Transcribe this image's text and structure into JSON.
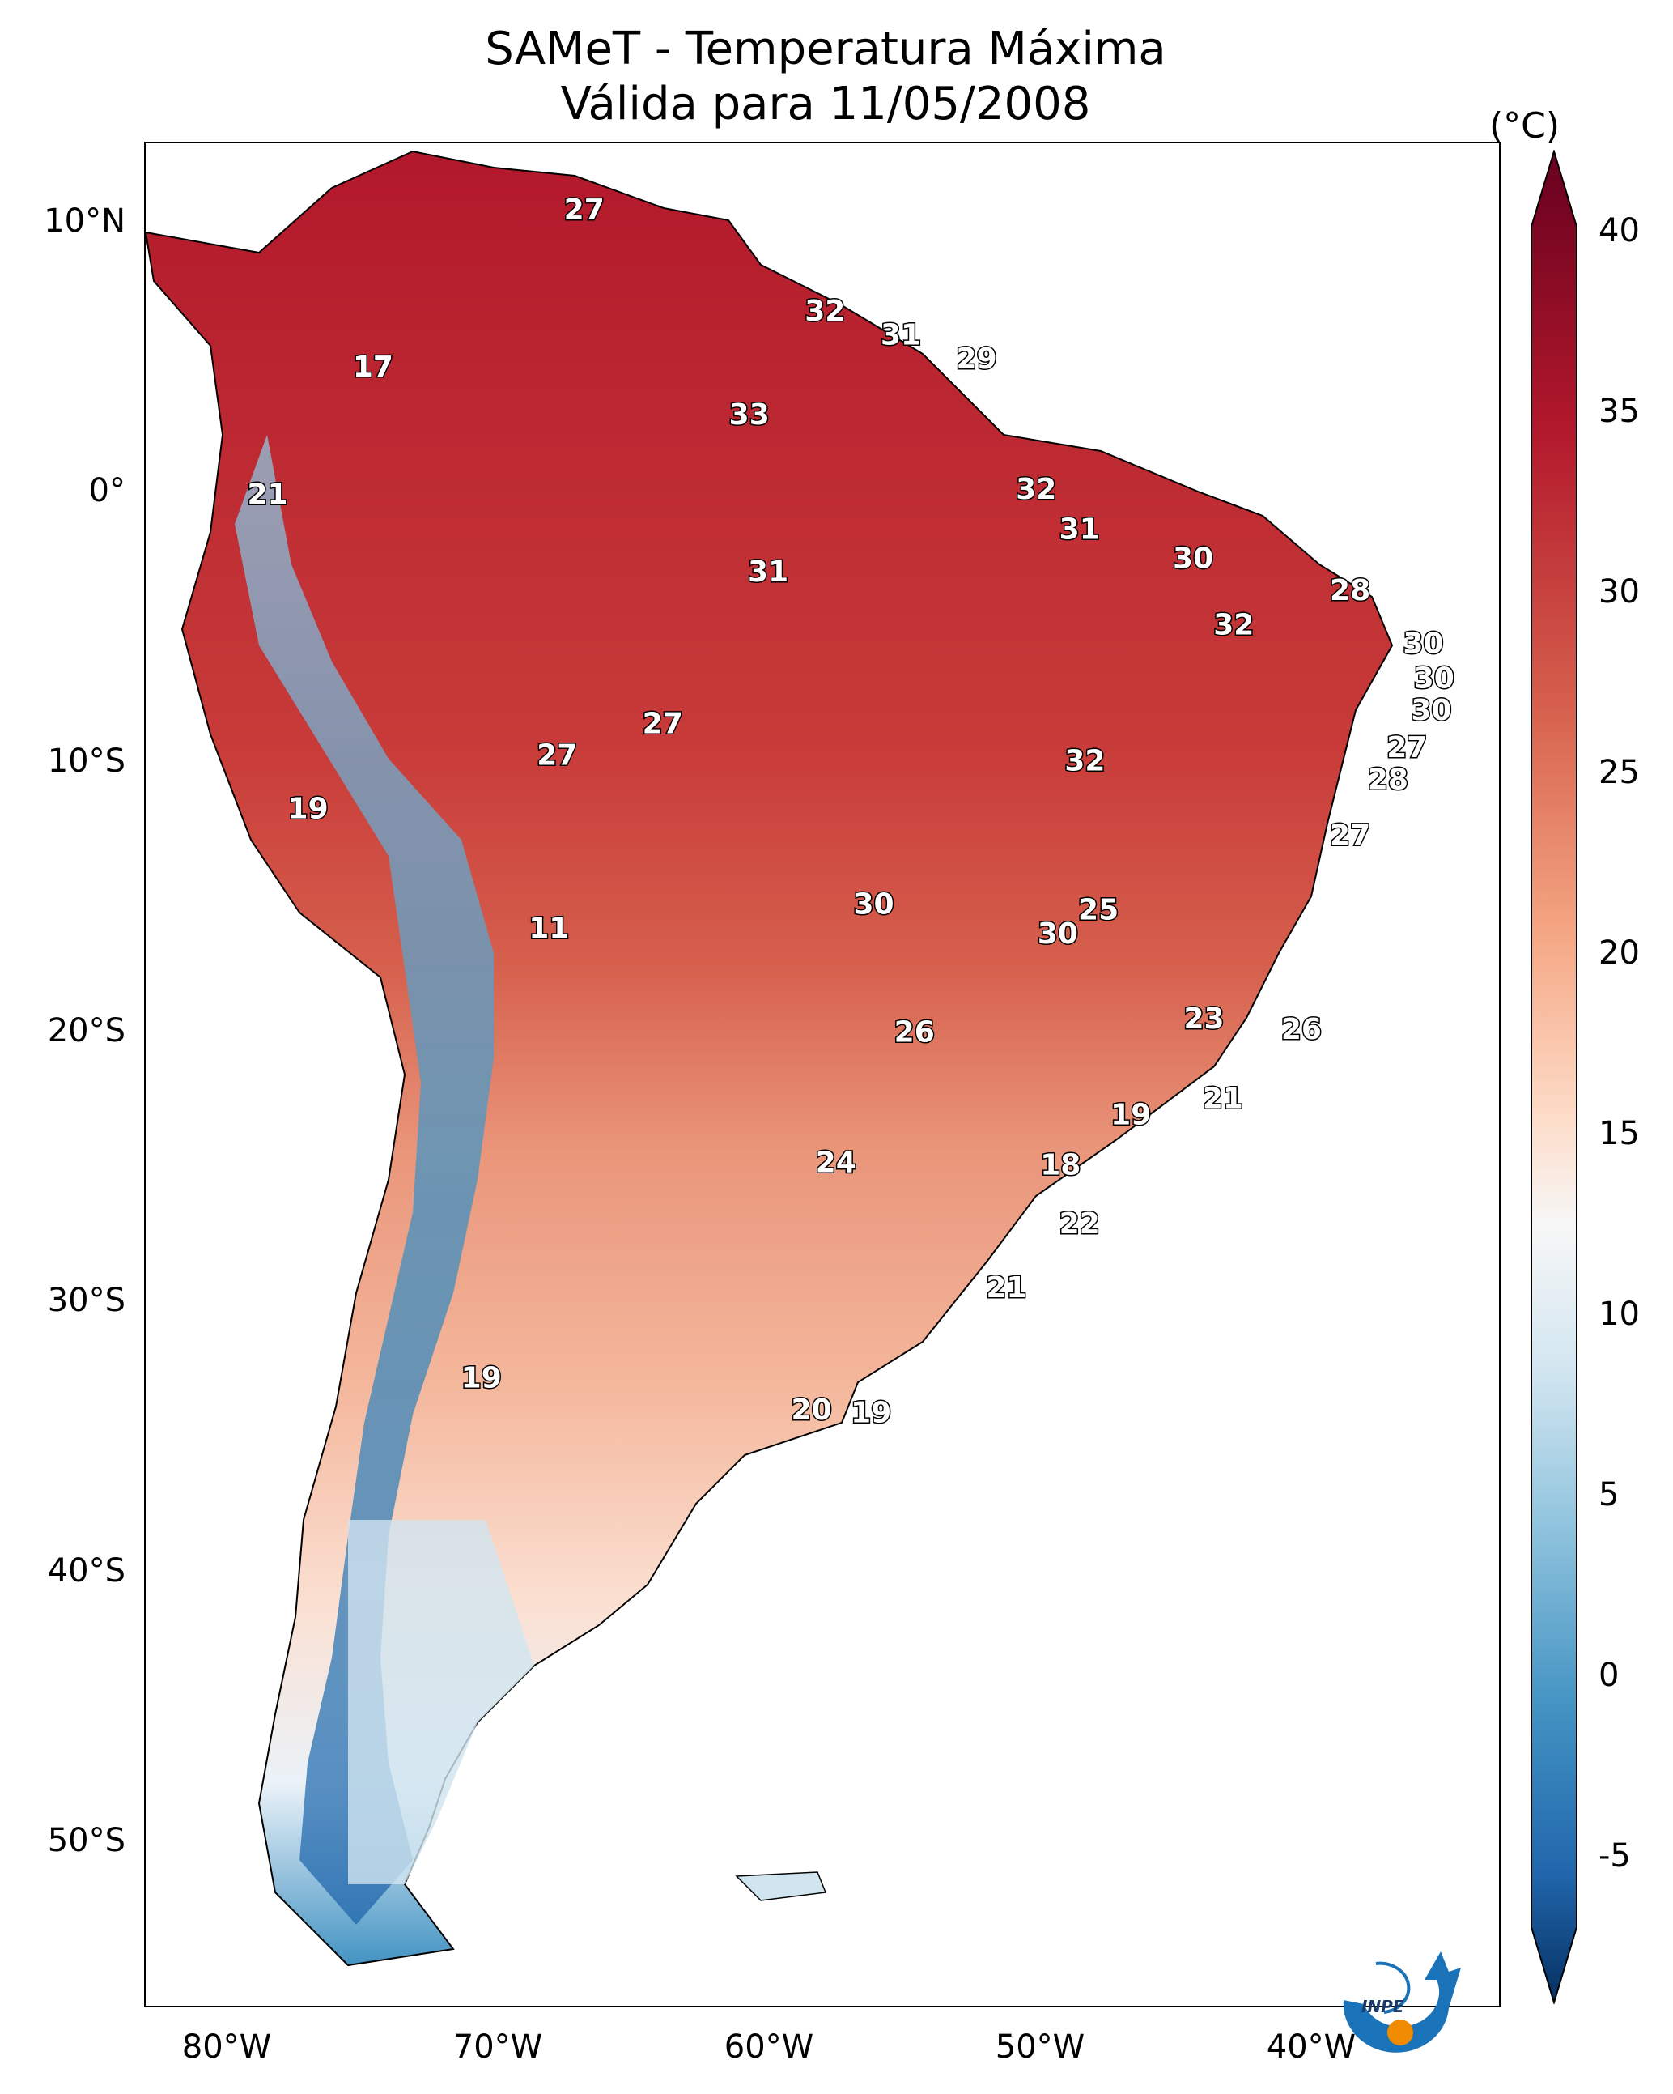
{
  "title_line1": "SAMeT - Temperatura Máxima",
  "title_line2": "Válida para 11/05/2008",
  "lat_labels": [
    "10°N",
    "0°",
    "10°S",
    "20°S",
    "30°S",
    "40°S",
    "50°S"
  ],
  "lon_labels": [
    "80°W",
    "70°W",
    "60°W",
    "50°W",
    "40°W"
  ],
  "colorbar": {
    "unit": "(°C)",
    "ticks": [
      "40",
      "35",
      "30",
      "25",
      "20",
      "15",
      "10",
      "5",
      "0",
      "-5"
    ],
    "range": [
      -5,
      40
    ],
    "colormap": "RdBu_r",
    "colors": [
      "#053061",
      "#2166ac",
      "#4393c3",
      "#92c5de",
      "#d1e5f0",
      "#f7f7f7",
      "#fddbc7",
      "#f4a582",
      "#d6604d",
      "#b2182b",
      "#67001f"
    ]
  },
  "extent": {
    "lon": [
      -83,
      -33
    ],
    "lat": [
      -57,
      13
    ]
  },
  "station_values": [
    {
      "v": "27",
      "lon": -66.8,
      "lat": 10.5
    },
    {
      "v": "32",
      "lon": -57.9,
      "lat": 6.7
    },
    {
      "v": "31",
      "lon": -55.1,
      "lat": 5.8
    },
    {
      "v": "29",
      "lon": -52.3,
      "lat": 4.9
    },
    {
      "v": "17",
      "lon": -74.6,
      "lat": 4.6
    },
    {
      "v": "33",
      "lon": -60.7,
      "lat": 2.8
    },
    {
      "v": "21",
      "lon": -78.5,
      "lat": -0.2
    },
    {
      "v": "32",
      "lon": -50.1,
      "lat": 0.0
    },
    {
      "v": "31",
      "lon": -48.5,
      "lat": -1.5
    },
    {
      "v": "30",
      "lon": -44.3,
      "lat": -2.6
    },
    {
      "v": "31",
      "lon": -60.0,
      "lat": -3.1
    },
    {
      "v": "28",
      "lon": -38.5,
      "lat": -3.8
    },
    {
      "v": "32",
      "lon": -42.8,
      "lat": -5.1
    },
    {
      "v": "30",
      "lon": -35.8,
      "lat": -5.8
    },
    {
      "v": "30",
      "lon": -35.4,
      "lat": -7.1
    },
    {
      "v": "30",
      "lon": -35.5,
      "lat": -8.3
    },
    {
      "v": "27",
      "lon": -63.9,
      "lat": -8.8
    },
    {
      "v": "27",
      "lon": -67.8,
      "lat": -10.0
    },
    {
      "v": "27",
      "lon": -36.4,
      "lat": -9.7
    },
    {
      "v": "32",
      "lon": -48.3,
      "lat": -10.2
    },
    {
      "v": "28",
      "lon": -37.1,
      "lat": -10.9
    },
    {
      "v": "19",
      "lon": -77.0,
      "lat": -12.0
    },
    {
      "v": "27",
      "lon": -38.5,
      "lat": -13.0
    },
    {
      "v": "30",
      "lon": -56.1,
      "lat": -15.6
    },
    {
      "v": "25",
      "lon": -47.8,
      "lat": -15.8
    },
    {
      "v": "30",
      "lon": -49.3,
      "lat": -16.7
    },
    {
      "v": "11",
      "lon": -68.1,
      "lat": -16.5
    },
    {
      "v": "23",
      "lon": -43.9,
      "lat": -19.9
    },
    {
      "v": "26",
      "lon": -54.6,
      "lat": -20.4
    },
    {
      "v": "26",
      "lon": -40.3,
      "lat": -20.3
    },
    {
      "v": "21",
      "lon": -43.2,
      "lat": -22.9
    },
    {
      "v": "19",
      "lon": -46.6,
      "lat": -23.5
    },
    {
      "v": "24",
      "lon": -57.5,
      "lat": -25.3
    },
    {
      "v": "18",
      "lon": -49.2,
      "lat": -25.4
    },
    {
      "v": "22",
      "lon": -48.5,
      "lat": -27.6
    },
    {
      "v": "21",
      "lon": -51.2,
      "lat": -30.0
    },
    {
      "v": "19",
      "lon": -70.6,
      "lat": -33.4
    },
    {
      "v": "20",
      "lon": -58.4,
      "lat": -34.6
    },
    {
      "v": "19",
      "lon": -56.2,
      "lat": -34.7
    }
  ],
  "logo": {
    "text": "INPE"
  }
}
